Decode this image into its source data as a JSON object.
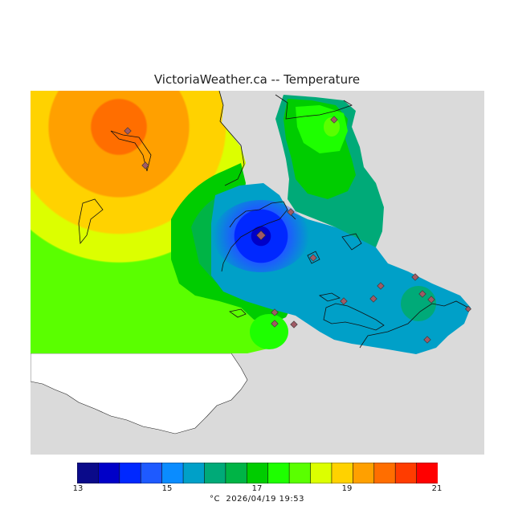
{
  "title": "VictoriaWeather.ca -- Temperature",
  "colorbar": {
    "ticks": [
      "13",
      "15",
      "17",
      "19",
      "21"
    ],
    "colors": [
      "#0a0a8a",
      "#0000c8",
      "#0028ff",
      "#1e5aff",
      "#0a8cff",
      "#00a0c8",
      "#00aa78",
      "#00b446",
      "#00cc00",
      "#1eff00",
      "#5aff00",
      "#dcff00",
      "#ffd200",
      "#ffa000",
      "#ff6e00",
      "#ff3c00",
      "#ff0000"
    ],
    "min": 13,
    "max": 21
  },
  "footer": {
    "unit": "°C",
    "datetime": "2026/04/19 19:53"
  },
  "map": {
    "ocean_color": "#dadada",
    "land_color": "#ffffff",
    "station_marker_color": "#a05a64"
  }
}
